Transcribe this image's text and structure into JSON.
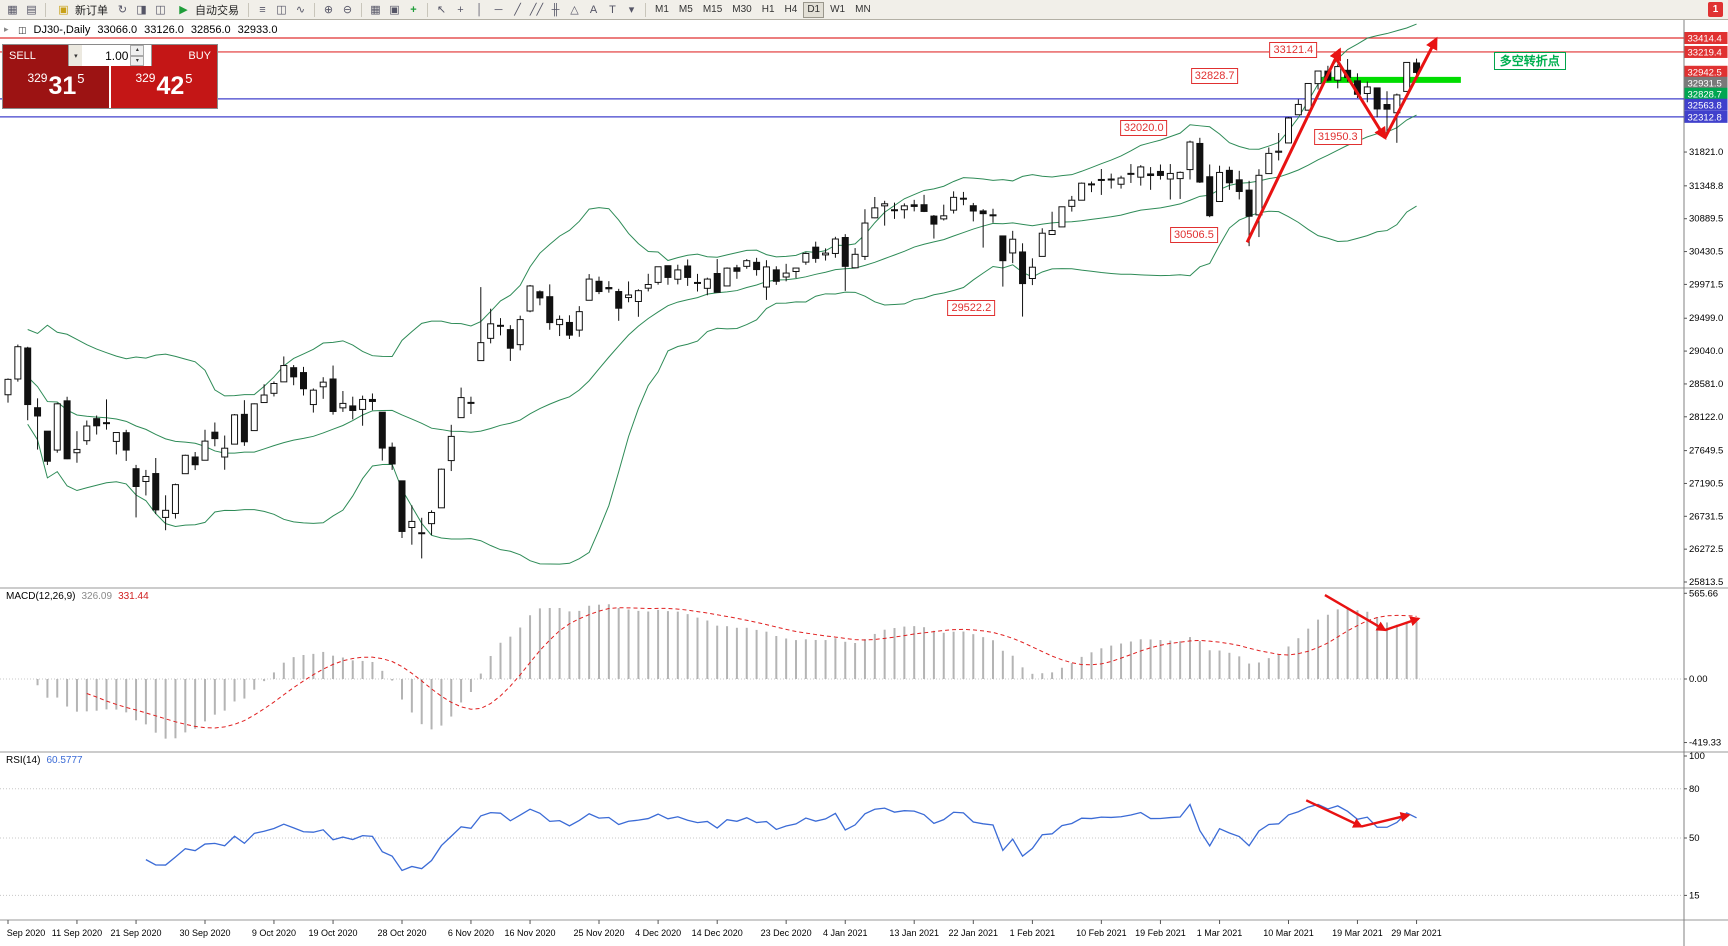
{
  "window": {
    "badge": "1"
  },
  "icons": {
    "chart_window": "▦",
    "template": "▤",
    "new_order": "▣",
    "refresh": "↻",
    "navigator": "◨",
    "terminal": "◫",
    "autotrade_play": "▶",
    "bar_chart": "≡",
    "candlestick": "◫",
    "line_chart": "∿",
    "zoom_in": "⊕",
    "zoom_out": "⊖",
    "tile_windows": "▦",
    "cascade": "▣",
    "add_indicator": "+",
    "cursor": "↖",
    "crosshair": "+",
    "vline": "│",
    "hline": "─",
    "trendline": "╱",
    "channel": "╱╱",
    "fibonacci": "╫",
    "shapes": "△",
    "text_tool": "A",
    "label_tool": "T",
    "dropdown": "▾",
    "stepper_up": "▴",
    "stepper_down": "▾",
    "collapse": "▸"
  },
  "toolbar": {
    "new_order_label": "新订单",
    "autotrading_label": "自动交易",
    "timeframes": [
      "M1",
      "M5",
      "M15",
      "M30",
      "H1",
      "H4",
      "D1",
      "W1",
      "MN"
    ],
    "active_timeframe": "D1"
  },
  "trade_panel": {
    "sell_label": "SELL",
    "buy_label": "BUY",
    "lot": "1.00",
    "sell_price_full": "32931.5",
    "buy_price_full": "32942.5",
    "sell_price": {
      "p1": "329",
      "p2": "31",
      "p3": "5"
    },
    "buy_price": {
      "p1": "329",
      "p2": "42",
      "p3": "5"
    }
  },
  "chart": {
    "symbol_period": "DJ30-,Daily",
    "ohlc": {
      "open": "33066.0",
      "high": "33126.0",
      "low": "32856.0",
      "close": "32933.0"
    }
  },
  "macd": {
    "label": "MACD(12,26,9)",
    "main_value": "326.09",
    "signal_value": "331.44",
    "axis": [
      "565.66",
      "0.00",
      "-419.33"
    ],
    "axis_values": [
      565.66,
      0,
      -419.33
    ]
  },
  "rsi": {
    "label": "RSI(14)",
    "value": "60.5777",
    "axis": [
      "100",
      "80",
      "50",
      "15"
    ],
    "axis_values": [
      100,
      80,
      50,
      15
    ],
    "levels": [
      80,
      50,
      15
    ]
  },
  "chart_data": {
    "type": "candlestick",
    "title": "DJ30-,Daily",
    "indicators": {
      "bollinger_period": 20,
      "bollinger_deviation": 2,
      "macd": [
        12,
        26,
        9
      ],
      "rsi_period": 14
    },
    "y_axis_ticks": [
      "31821.0",
      "31348.8",
      "30889.5",
      "30430.5",
      "29971.5",
      "29499.0",
      "29040.0",
      "28581.0",
      "28122.0",
      "27649.5",
      "27190.5",
      "26731.5",
      "26272.5",
      "25813.5"
    ],
    "special_labels": [
      {
        "text": "33414.4",
        "price": 33414.4,
        "bg": "#e03232"
      },
      {
        "text": "33219.4",
        "price": 33219.4,
        "bg": "#e03232"
      },
      {
        "text": "32942.5",
        "price": 32942.5,
        "bg": "#e03232"
      },
      {
        "text": "32931.5",
        "price": 32931.5,
        "bg": "#7a7a7a"
      },
      {
        "text": "32828.7",
        "price": 32828.7,
        "bg": "#00a651"
      },
      {
        "text": "32563.8",
        "price": 32563.8,
        "bg": "#4040cc"
      },
      {
        "text": "32312.8",
        "price": 32312.8,
        "bg": "#4040cc"
      }
    ],
    "h_lines": [
      {
        "price": 33414.4,
        "color": "#e03232"
      },
      {
        "price": 33219.4,
        "color": "#e03232"
      },
      {
        "price": 32563.8,
        "color": "#4040cc"
      },
      {
        "price": 32312.8,
        "color": "#4040cc"
      }
    ],
    "green_line": {
      "price": 32828.7,
      "from": 133,
      "to": 147.5,
      "color": "#00dd00"
    },
    "annotations": [
      {
        "text": "33121.4",
        "index": 130.5,
        "price": 33245
      },
      {
        "text": "32828.7",
        "index": 122.5,
        "price": 32890
      },
      {
        "text": "32020.0",
        "index": 115.3,
        "price": 32150
      },
      {
        "text": "31950.3",
        "index": 135.0,
        "price": 32030
      },
      {
        "text": "30506.5",
        "index": 120.4,
        "price": 30660
      },
      {
        "text": "29522.2",
        "index": 97.8,
        "price": 29640
      }
    ],
    "turning_point_label": {
      "text": "多空转折点",
      "index": 154.5,
      "price": 33090,
      "color": "#00b050"
    },
    "trend_arrows": [
      [
        125.8,
        30560,
        135.2,
        33250
      ],
      [
        134.6,
        33180,
        139.8,
        32020
      ],
      [
        139.8,
        32020,
        145.0,
        33400
      ]
    ],
    "macd_arrows": [
      [
        133.7,
        554,
        139.8,
        323
      ],
      [
        139.8,
        323,
        143.2,
        398
      ]
    ],
    "rsi_arrows": [
      [
        131.8,
        73,
        137.4,
        57
      ],
      [
        137.4,
        57,
        142.2,
        64
      ]
    ],
    "x_ticks": [
      [
        "Sep 2020",
        0
      ],
      [
        "11 Sep 2020",
        7
      ],
      [
        "21 Sep 2020",
        13
      ],
      [
        "30 Sep 2020",
        20
      ],
      [
        "9 Oct 2020",
        27
      ],
      [
        "19 Oct 2020",
        33
      ],
      [
        "28 Oct 2020",
        40
      ],
      [
        "6 Nov 2020",
        47
      ],
      [
        "16 Nov 2020",
        53
      ],
      [
        "25 Nov 2020",
        60
      ],
      [
        "4 Dec 2020",
        66
      ],
      [
        "14 Dec 2020",
        72
      ],
      [
        "23 Dec 2020",
        79
      ],
      [
        "4 Jan 2021",
        85
      ],
      [
        "13 Jan 2021",
        92
      ],
      [
        "22 Jan 2021",
        98
      ],
      [
        "1 Feb 2021",
        104
      ],
      [
        "10 Feb 2021",
        111
      ],
      [
        "19 Feb 2021",
        117
      ],
      [
        "1 Mar 2021",
        123
      ],
      [
        "10 Mar 2021",
        130
      ],
      [
        "19 Mar 2021",
        137
      ],
      [
        "29 Mar 2021",
        143
      ]
    ],
    "candles": [
      [
        28430,
        28659,
        28320,
        28645
      ],
      [
        28650,
        29131,
        28613,
        29101
      ],
      [
        29083,
        29100,
        28074,
        28293
      ],
      [
        28249,
        28380,
        27664,
        28133
      ],
      [
        27921,
        27921,
        27448,
        27501
      ],
      [
        27657,
        28317,
        27620,
        28303
      ],
      [
        28345,
        28402,
        27530,
        27535
      ],
      [
        27620,
        27921,
        27480,
        27666
      ],
      [
        27788,
        28070,
        27730,
        27993
      ],
      [
        28096,
        28140,
        27874,
        27996
      ],
      [
        28040,
        28365,
        27942,
        28032
      ],
      [
        27778,
        27905,
        27596,
        27902
      ],
      [
        27900,
        27940,
        27505,
        27657
      ],
      [
        27397,
        27450,
        26716,
        27148
      ],
      [
        27218,
        27380,
        27023,
        27288
      ],
      [
        27329,
        27546,
        26763,
        26821
      ],
      [
        26716,
        27025,
        26537,
        26815
      ],
      [
        26771,
        27188,
        26700,
        27174
      ],
      [
        27327,
        27593,
        27327,
        27584
      ],
      [
        27560,
        27630,
        27378,
        27452
      ],
      [
        27515,
        27940,
        27511,
        27782
      ],
      [
        27907,
        28042,
        27710,
        27817
      ],
      [
        27560,
        27860,
        27382,
        27683
      ],
      [
        27740,
        28160,
        27740,
        28149
      ],
      [
        28156,
        28354,
        27716,
        27773
      ],
      [
        27929,
        28310,
        27929,
        28303
      ],
      [
        28321,
        28576,
        28321,
        28426
      ],
      [
        28450,
        28616,
        28406,
        28587
      ],
      [
        28610,
        28965,
        28610,
        28838
      ],
      [
        28808,
        28845,
        28563,
        28680
      ],
      [
        28740,
        28820,
        28420,
        28514
      ],
      [
        28293,
        28518,
        28181,
        28494
      ],
      [
        28541,
        28675,
        28373,
        28606
      ],
      [
        28650,
        28838,
        28152,
        28196
      ],
      [
        28247,
        28482,
        28190,
        28309
      ],
      [
        28274,
        28403,
        28086,
        28210
      ],
      [
        28225,
        28418,
        27997,
        28364
      ],
      [
        28364,
        28448,
        28213,
        28336
      ],
      [
        28186,
        28186,
        27510,
        27685
      ],
      [
        27697,
        27762,
        27380,
        27463
      ],
      [
        27227,
        27227,
        26429,
        26520
      ],
      [
        26575,
        26884,
        26335,
        26660
      ],
      [
        26502,
        26711,
        26143,
        26502
      ],
      [
        26629,
        26815,
        26470,
        26785
      ],
      [
        26850,
        27399,
        26850,
        27390
      ],
      [
        27510,
        28010,
        27364,
        27848
      ],
      [
        28110,
        28530,
        28110,
        28390
      ],
      [
        28321,
        28403,
        28161,
        28323
      ],
      [
        28907,
        29934,
        28903,
        29158
      ],
      [
        29218,
        29632,
        29148,
        29421
      ],
      [
        29400,
        29500,
        29260,
        29398
      ],
      [
        29340,
        29402,
        28902,
        29080
      ],
      [
        29130,
        29535,
        29050,
        29480
      ],
      [
        29600,
        29964,
        29583,
        29950
      ],
      [
        29869,
        29888,
        29680,
        29783
      ],
      [
        29800,
        29972,
        29338,
        29438
      ],
      [
        29410,
        29538,
        29250,
        29483
      ],
      [
        29440,
        29540,
        29209,
        29263
      ],
      [
        29333,
        29668,
        29240,
        29591
      ],
      [
        29750,
        30116,
        29750,
        30046
      ],
      [
        30015,
        30080,
        29836,
        29872
      ],
      [
        29928,
        30017,
        29856,
        29910
      ],
      [
        29872,
        29910,
        29463,
        29639
      ],
      [
        29788,
        30013,
        29722,
        29824
      ],
      [
        29733,
        29903,
        29519,
        29884
      ],
      [
        29919,
        30120,
        29874,
        29970
      ],
      [
        30000,
        30218,
        29968,
        30218
      ],
      [
        30233,
        30233,
        29967,
        30069
      ],
      [
        30044,
        30247,
        29972,
        30174
      ],
      [
        30229,
        30320,
        29951,
        30069
      ],
      [
        29998,
        30119,
        29872,
        29999
      ],
      [
        29917,
        30066,
        29820,
        30046
      ],
      [
        30124,
        30326,
        29861,
        29861
      ],
      [
        29950,
        30210,
        29950,
        30199
      ],
      [
        30204,
        30245,
        30050,
        30155
      ],
      [
        30224,
        30325,
        30190,
        30303
      ],
      [
        30280,
        30343,
        30094,
        30179
      ],
      [
        29935,
        30310,
        29755,
        30216
      ],
      [
        30175,
        30225,
        29966,
        30015
      ],
      [
        30075,
        30259,
        30015,
        30130
      ],
      [
        30152,
        30205,
        30060,
        30200
      ],
      [
        30283,
        30420,
        30246,
        30404
      ],
      [
        30492,
        30569,
        30274,
        30335
      ],
      [
        30384,
        30475,
        30305,
        30409
      ],
      [
        30404,
        30637,
        30344,
        30606
      ],
      [
        30627,
        30674,
        29881,
        30224
      ],
      [
        30204,
        30479,
        30204,
        30392
      ],
      [
        30363,
        31022,
        30313,
        30829
      ],
      [
        30902,
        31193,
        30897,
        31041
      ],
      [
        31069,
        31140,
        30793,
        31098
      ],
      [
        31015,
        31114,
        30888,
        31008
      ],
      [
        31015,
        31104,
        30892,
        31069
      ],
      [
        31084,
        31153,
        30992,
        31061
      ],
      [
        31085,
        31223,
        30982,
        30991
      ],
      [
        30926,
        30941,
        30612,
        30814
      ],
      [
        30887,
        31086,
        30865,
        30930
      ],
      [
        31009,
        31272,
        30962,
        31188
      ],
      [
        31172,
        31264,
        31078,
        31176
      ],
      [
        31071,
        31110,
        30852,
        30997
      ],
      [
        30998,
        31023,
        30486,
        30960
      ],
      [
        30944,
        31028,
        30833,
        30937
      ],
      [
        30649,
        30649,
        29941,
        30303
      ],
      [
        30411,
        30720,
        30269,
        30603
      ],
      [
        30425,
        30546,
        29522,
        29983
      ],
      [
        30054,
        30336,
        29962,
        30212
      ],
      [
        30363,
        30756,
        30363,
        30687
      ],
      [
        30669,
        30987,
        30669,
        30724
      ],
      [
        30775,
        31061,
        30775,
        31056
      ],
      [
        31062,
        31208,
        30989,
        31148
      ],
      [
        31148,
        31396,
        31148,
        31386
      ],
      [
        31362,
        31409,
        31261,
        31376
      ],
      [
        31434,
        31584,
        31222,
        31438
      ],
      [
        31444,
        31520,
        31311,
        31430
      ],
      [
        31371,
        31490,
        31310,
        31458
      ],
      [
        31520,
        31653,
        31389,
        31523
      ],
      [
        31470,
        31638,
        31352,
        31613
      ],
      [
        31515,
        31611,
        31293,
        31493
      ],
      [
        31550,
        31647,
        31436,
        31494
      ],
      [
        31444,
        31653,
        31158,
        31522
      ],
      [
        31450,
        31550,
        31166,
        31537
      ],
      [
        31576,
        31981,
        31437,
        31961
      ],
      [
        31941,
        32020,
        31389,
        31402
      ],
      [
        31476,
        31647,
        30911,
        30932
      ],
      [
        31130,
        31630,
        31130,
        31536
      ],
      [
        31565,
        31617,
        31293,
        31391
      ],
      [
        31433,
        31559,
        31159,
        31270
      ],
      [
        31289,
        31419,
        30506,
        30924
      ],
      [
        30943,
        31581,
        30633,
        31496
      ],
      [
        31520,
        31885,
        31520,
        31802
      ],
      [
        31818,
        32087,
        31704,
        31833
      ],
      [
        31948,
        32310,
        31948,
        32297
      ],
      [
        32342,
        32557,
        32342,
        32486
      ],
      [
        32406,
        32779,
        32406,
        32779
      ],
      [
        32777,
        32953,
        32695,
        32953
      ],
      [
        32952,
        33026,
        32806,
        32825
      ],
      [
        32825,
        33047,
        32711,
        33015
      ],
      [
        32963,
        33121,
        32803,
        32862
      ],
      [
        32816,
        32921,
        32576,
        32628
      ],
      [
        32639,
        32806,
        32516,
        32731
      ],
      [
        32717,
        32717,
        32306,
        32423
      ],
      [
        32485,
        32670,
        32071,
        32420
      ],
      [
        32370,
        32638,
        31950,
        32619
      ],
      [
        32668,
        33073,
        32668,
        33073
      ],
      [
        33066,
        33126,
        32856,
        32933
      ]
    ]
  }
}
